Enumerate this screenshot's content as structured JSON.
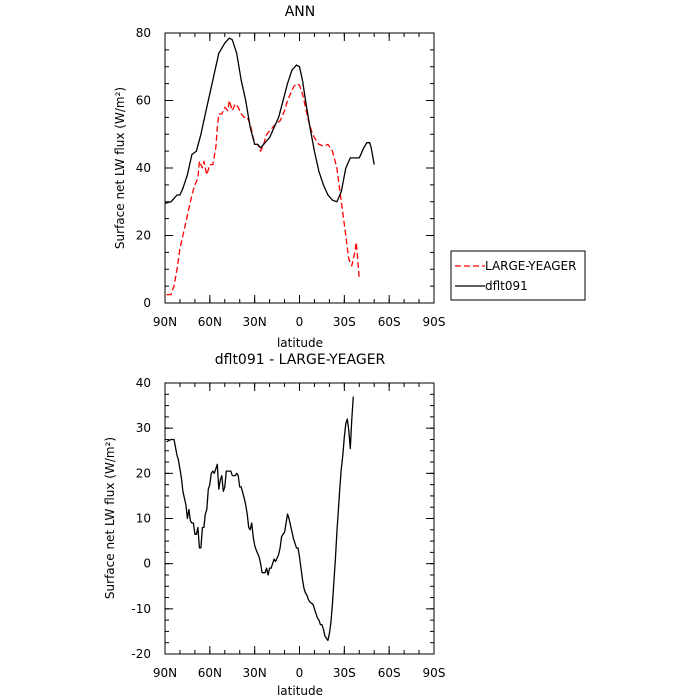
{
  "chart_data": [
    {
      "type": "line",
      "title": "ANN",
      "xlabel": "latitude",
      "ylabel": "Surface net LW flux (W/m²)",
      "xlim": [
        90,
        -90
      ],
      "ylim": [
        0,
        80
      ],
      "x_ticks": [
        {
          "value": 90,
          "label": "90N"
        },
        {
          "value": 60,
          "label": "60N"
        },
        {
          "value": 30,
          "label": "30N"
        },
        {
          "value": 0,
          "label": "0"
        },
        {
          "value": -30,
          "label": "30S"
        },
        {
          "value": -60,
          "label": "60S"
        },
        {
          "value": -90,
          "label": "90S"
        }
      ],
      "y_ticks": [
        0,
        20,
        40,
        60,
        80
      ],
      "legend": "right",
      "series": [
        {
          "name": "LARGE-YEAGER",
          "color": "#ff0000",
          "style": "dashed",
          "points": [
            [
              89,
              2.5
            ],
            [
              86,
              2.5
            ],
            [
              84,
              5
            ],
            [
              82,
              10
            ],
            [
              80,
              16
            ],
            [
              77,
              22
            ],
            [
              75,
              26
            ],
            [
              72,
              32
            ],
            [
              70,
              35
            ],
            [
              68,
              37
            ],
            [
              67,
              42
            ],
            [
              65,
              40
            ],
            [
              64,
              42
            ],
            [
              62,
              38
            ],
            [
              60,
              41
            ],
            [
              58,
              41
            ],
            [
              56,
              46
            ],
            [
              55,
              52
            ],
            [
              54,
              56
            ],
            [
              52,
              56
            ],
            [
              50,
              58
            ],
            [
              48,
              57
            ],
            [
              47,
              60
            ],
            [
              45,
              57
            ],
            [
              43,
              59
            ],
            [
              41,
              58
            ],
            [
              39,
              56
            ],
            [
              37,
              55
            ],
            [
              35,
              55
            ],
            [
              33,
              53
            ],
            [
              30,
              47
            ],
            [
              28,
              47
            ],
            [
              26,
              45
            ],
            [
              24,
              47
            ],
            [
              22,
              50
            ],
            [
              20,
              51
            ],
            [
              18,
              52
            ],
            [
              16,
              53
            ],
            [
              13,
              54
            ],
            [
              10,
              57
            ],
            [
              8,
              60
            ],
            [
              6,
              62
            ],
            [
              4,
              64
            ],
            [
              2,
              65
            ],
            [
              0,
              64.5
            ],
            [
              -2,
              62
            ],
            [
              -4,
              58
            ],
            [
              -6,
              54
            ],
            [
              -8,
              51
            ],
            [
              -10,
              49
            ],
            [
              -13,
              47
            ],
            [
              -16,
              46.5
            ],
            [
              -19,
              47
            ],
            [
              -22,
              45
            ],
            [
              -25,
              40
            ],
            [
              -28,
              30
            ],
            [
              -31,
              20
            ],
            [
              -33,
              13
            ],
            [
              -35,
              11
            ],
            [
              -37,
              15
            ],
            [
              -38,
              18
            ],
            [
              -40,
              7
            ]
          ]
        },
        {
          "name": "dflt091",
          "color": "#000000",
          "style": "solid",
          "points": [
            [
              90,
              29.5
            ],
            [
              86,
              30
            ],
            [
              84,
              31
            ],
            [
              82,
              32
            ],
            [
              80,
              32
            ],
            [
              78,
              34
            ],
            [
              75,
              38
            ],
            [
              72,
              44
            ],
            [
              69,
              45
            ],
            [
              66,
              50
            ],
            [
              63,
              56
            ],
            [
              60,
              62
            ],
            [
              57,
              68
            ],
            [
              54,
              74
            ],
            [
              50,
              77
            ],
            [
              47,
              78.5
            ],
            [
              45,
              78
            ],
            [
              42,
              74
            ],
            [
              39,
              66
            ],
            [
              36,
              60
            ],
            [
              33,
              52
            ],
            [
              30,
              47
            ],
            [
              28,
              47
            ],
            [
              26,
              46
            ],
            [
              24,
              47
            ],
            [
              22,
              48
            ],
            [
              20,
              49
            ],
            [
              17,
              52
            ],
            [
              14,
              55
            ],
            [
              11,
              60
            ],
            [
              8,
              65
            ],
            [
              5,
              69
            ],
            [
              2,
              70.5
            ],
            [
              0,
              70
            ],
            [
              -2,
              66
            ],
            [
              -4,
              60
            ],
            [
              -7,
              52
            ],
            [
              -10,
              45
            ],
            [
              -13,
              39
            ],
            [
              -16,
              35
            ],
            [
              -19,
              32
            ],
            [
              -22,
              30.5
            ],
            [
              -25,
              30
            ],
            [
              -28,
              33
            ],
            [
              -31,
              40
            ],
            [
              -34,
              43
            ],
            [
              -37,
              43
            ],
            [
              -40,
              43
            ],
            [
              -43,
              46
            ],
            [
              -45,
              47.5
            ],
            [
              -47,
              47.5
            ],
            [
              -48,
              46
            ],
            [
              -50,
              41
            ]
          ]
        }
      ]
    },
    {
      "type": "line",
      "title": "dflt091 - LARGE-YEAGER",
      "xlabel": "latitude",
      "ylabel": "Surface net LW flux (W/m²)",
      "xlim": [
        90,
        -90
      ],
      "ylim": [
        -20,
        40
      ],
      "x_ticks": [
        {
          "value": 90,
          "label": "90N"
        },
        {
          "value": 60,
          "label": "60N"
        },
        {
          "value": 30,
          "label": "30N"
        },
        {
          "value": 0,
          "label": "0"
        },
        {
          "value": -30,
          "label": "30S"
        },
        {
          "value": -60,
          "label": "60S"
        },
        {
          "value": -90,
          "label": "90S"
        }
      ],
      "y_ticks": [
        -20,
        -10,
        0,
        10,
        20,
        30,
        40
      ],
      "series": [
        {
          "color": "#000000",
          "style": "solid",
          "points": [
            [
              89,
              27
            ],
            [
              86,
              27.5
            ],
            [
              84,
              27.5
            ],
            [
              82,
              24
            ],
            [
              81,
              23
            ],
            [
              79,
              19
            ],
            [
              78,
              16
            ],
            [
              76,
              13
            ],
            [
              75,
              10
            ],
            [
              74,
              12
            ],
            [
              73,
              9.5
            ],
            [
              72,
              9
            ],
            [
              71,
              9
            ],
            [
              70,
              6.5
            ],
            [
              69,
              6.5
            ],
            [
              68,
              8
            ],
            [
              67,
              3.5
            ],
            [
              66,
              3.5
            ],
            [
              65,
              8
            ],
            [
              64,
              8
            ],
            [
              63,
              11
            ],
            [
              62,
              12
            ],
            [
              61,
              16.5
            ],
            [
              60,
              17.5
            ],
            [
              59,
              20
            ],
            [
              58,
              20.5
            ],
            [
              57,
              20
            ],
            [
              56,
              21
            ],
            [
              55,
              22
            ],
            [
              54,
              16.5
            ],
            [
              53,
              18.5
            ],
            [
              52,
              19.5
            ],
            [
              51,
              16
            ],
            [
              50,
              17
            ],
            [
              49,
              20.5
            ],
            [
              48,
              20.5
            ],
            [
              47,
              20.5
            ],
            [
              46,
              20.5
            ],
            [
              45,
              19.5
            ],
            [
              44,
              19.5
            ],
            [
              43,
              19.5
            ],
            [
              42,
              20
            ],
            [
              41,
              19.5
            ],
            [
              40,
              17
            ],
            [
              39,
              17
            ],
            [
              37,
              14.5
            ],
            [
              36,
              13
            ],
            [
              35,
              11
            ],
            [
              34,
              8
            ],
            [
              33,
              7.5
            ],
            [
              32,
              9
            ],
            [
              31,
              6
            ],
            [
              30,
              4
            ],
            [
              29,
              3
            ],
            [
              27,
              1.5
            ],
            [
              26,
              0
            ],
            [
              25,
              -2
            ],
            [
              23,
              -2
            ],
            [
              22,
              -1
            ],
            [
              21,
              -2.5
            ],
            [
              20,
              -1
            ],
            [
              19,
              -1
            ],
            [
              17,
              1
            ],
            [
              16,
              0.5
            ],
            [
              14,
              2
            ],
            [
              13,
              3.5
            ],
            [
              12,
              6
            ],
            [
              10,
              7
            ],
            [
              9,
              9
            ],
            [
              8,
              11
            ],
            [
              7,
              10
            ],
            [
              6,
              8.5
            ],
            [
              5,
              7
            ],
            [
              4,
              5.5
            ],
            [
              3,
              4.5
            ],
            [
              2,
              3.5
            ],
            [
              1,
              3.5
            ],
            [
              0,
              1.5
            ],
            [
              -1,
              -1
            ],
            [
              -2,
              -3.5
            ],
            [
              -3,
              -5.5
            ],
            [
              -4,
              -6.5
            ],
            [
              -5,
              -7
            ],
            [
              -6,
              -8
            ],
            [
              -7,
              -8.5
            ],
            [
              -9,
              -9
            ],
            [
              -10,
              -10
            ],
            [
              -11,
              -11
            ],
            [
              -12,
              -12
            ],
            [
              -13,
              -12.5
            ],
            [
              -14,
              -13.5
            ],
            [
              -15,
              -13.5
            ],
            [
              -16,
              -14.5
            ],
            [
              -17,
              -16
            ],
            [
              -18,
              -16.5
            ],
            [
              -19,
              -17
            ],
            [
              -20,
              -15.5
            ],
            [
              -21,
              -13
            ],
            [
              -22,
              -9
            ],
            [
              -23,
              -4
            ],
            [
              -24,
              1
            ],
            [
              -25,
              7
            ],
            [
              -26,
              12
            ],
            [
              -27,
              17
            ],
            [
              -28,
              21
            ],
            [
              -29,
              24
            ],
            [
              -30,
              28
            ],
            [
              -31,
              31
            ],
            [
              -32,
              32
            ],
            [
              -33,
              29.5
            ],
            [
              -34,
              25.5
            ],
            [
              -35,
              32
            ],
            [
              -36,
              37
            ]
          ]
        }
      ]
    }
  ]
}
